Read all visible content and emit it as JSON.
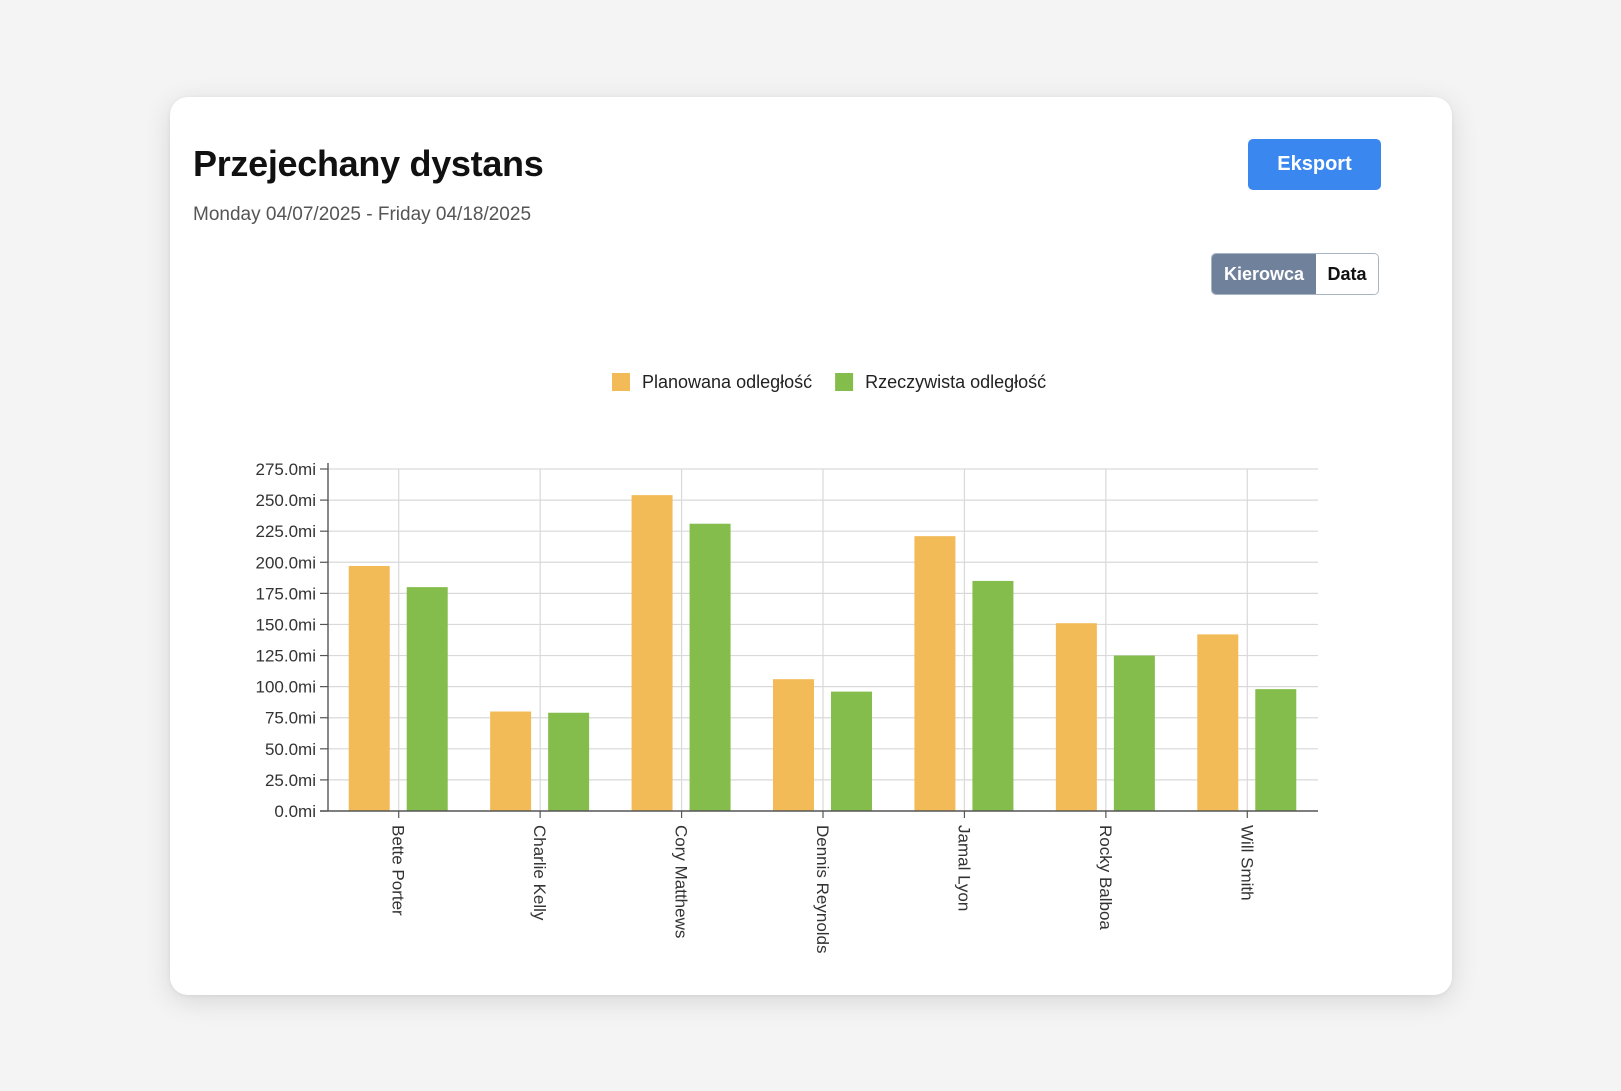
{
  "header": {
    "title": "Przejechany dystans",
    "date_range": "Monday 04/07/2025 - Friday 04/18/2025",
    "export_label": "Eksport"
  },
  "view_toggle": {
    "options": [
      "Kierowca",
      "Data"
    ],
    "selected": "Kierowca"
  },
  "colors": {
    "export_button": "#3b87f0",
    "toggle_active": "#6f819b",
    "planned": "#f3bb57",
    "actual": "#84bd4b",
    "grid": "#d9d9d9",
    "axis": "#555555"
  },
  "chart_data": {
    "type": "bar",
    "legend_position": "top-center",
    "grid": true,
    "y_unit_suffix": "mi",
    "ylim": [
      0,
      275
    ],
    "y_ticks": [
      "0.0mi",
      "25.0mi",
      "50.0mi",
      "75.0mi",
      "100.0mi",
      "125.0mi",
      "150.0mi",
      "175.0mi",
      "200.0mi",
      "225.0mi",
      "250.0mi",
      "275.0mi"
    ],
    "categories": [
      "Bette Porter",
      "Charlie Kelly",
      "Cory Matthews",
      "Dennis Reynolds",
      "Jamal Lyon",
      "Rocky Balboa",
      "Will Smith"
    ],
    "series": [
      {
        "name": "Planowana odległość",
        "values": [
          197,
          80,
          254,
          106,
          221,
          151,
          142
        ]
      },
      {
        "name": "Rzeczywista odległość",
        "values": [
          180,
          79,
          231,
          96,
          185,
          125,
          98
        ]
      }
    ]
  }
}
